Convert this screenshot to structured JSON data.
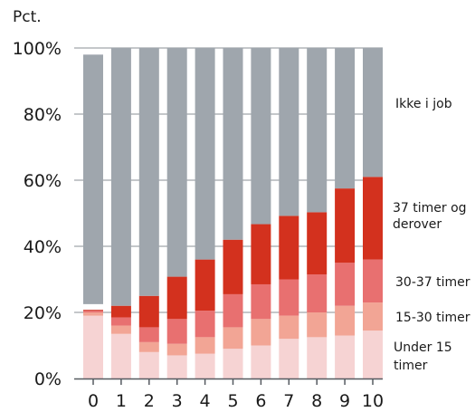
{
  "chart_data": {
    "type": "bar",
    "stacked": true,
    "unit_label": "Pct.",
    "categories": [
      "0",
      "1",
      "2",
      "3",
      "4",
      "5",
      "6",
      "7",
      "8",
      "9",
      "10"
    ],
    "ylim": [
      0,
      100
    ],
    "y_ticks": [
      "0%",
      "20%",
      "40%",
      "60%",
      "80%",
      "100%"
    ],
    "y_tick_values": [
      0,
      20,
      40,
      60,
      80,
      100
    ],
    "grid": true,
    "legend_placement": "right",
    "series": [
      {
        "name": "Under 15 timer",
        "color": "#f6d3d3",
        "values": [
          19,
          13.5,
          8,
          7,
          7.5,
          9,
          10,
          12,
          12.5,
          13,
          14.5
        ]
      },
      {
        "name": "15-30 timer",
        "color": "#f2a595",
        "values": [
          1,
          2.5,
          3,
          3.5,
          5,
          6.5,
          8,
          7,
          7.5,
          9,
          8.5
        ]
      },
      {
        "name": "30-37 timer",
        "color": "#e87070",
        "values": [
          0.5,
          2.5,
          4.5,
          7.5,
          8,
          10,
          10.5,
          11,
          11.5,
          13,
          13
        ]
      },
      {
        "name": "37 timer og derover",
        "color": "#d3311e",
        "values": [
          0.3,
          3.5,
          9.5,
          12.8,
          15.5,
          16.5,
          18.2,
          19.2,
          18.8,
          22.5,
          25
        ]
      },
      {
        "name": "Ikke i job",
        "color": "#9fa6ad",
        "values": [
          77.2,
          78,
          75,
          69.2,
          64,
          58,
          53.3,
          50.8,
          49.7,
          42.5,
          39
        ]
      }
    ],
    "white_mark": {
      "category": "0",
      "from": 20.8,
      "to": 22.5
    }
  }
}
